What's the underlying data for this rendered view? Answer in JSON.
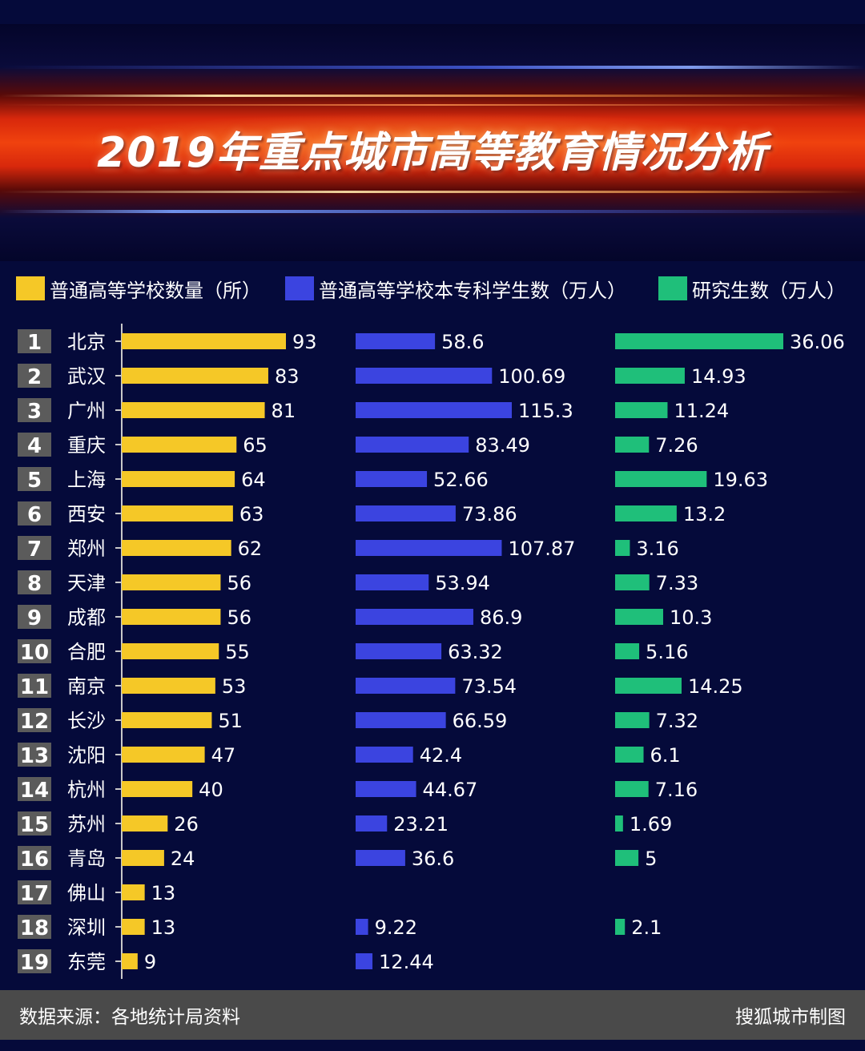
{
  "title": "2019年重点城市高等教育情况分析",
  "colors": {
    "schools": "#f5c827",
    "students": "#3b44e0",
    "grad": "#1fbf7a"
  },
  "legend": {
    "schools": "普通高等学校数量（所）",
    "students": "普通高等学校本专科学生数（万人）",
    "grad": "研究生数（万人）"
  },
  "footer": {
    "source": "数据来源：各地统计局资料",
    "credit": "搜狐城市制图"
  },
  "chart_data": {
    "type": "bar",
    "orientation": "horizontal",
    "categories": [
      "北京",
      "武汉",
      "广州",
      "重庆",
      "上海",
      "西安",
      "郑州",
      "天津",
      "成都",
      "合肥",
      "南京",
      "长沙",
      "沈阳",
      "杭州",
      "苏州",
      "青岛",
      "佛山",
      "深圳",
      "东莞"
    ],
    "ranks": [
      "1",
      "2",
      "3",
      "4",
      "5",
      "6",
      "7",
      "8",
      "9",
      "10",
      "11",
      "12",
      "13",
      "14",
      "15",
      "16",
      "17",
      "18",
      "19"
    ],
    "series": [
      {
        "name": "普通高等学校数量（所）",
        "values": [
          93,
          83,
          81,
          65,
          64,
          63,
          62,
          56,
          56,
          55,
          53,
          51,
          47,
          40,
          26,
          24,
          13,
          13,
          9
        ],
        "labels": [
          "93",
          "83",
          "81",
          "65",
          "64",
          "63",
          "62",
          "56",
          "56",
          "55",
          "53",
          "51",
          "47",
          "40",
          "26",
          "24",
          "13",
          "13",
          "9"
        ]
      },
      {
        "name": "普通高等学校本专科学生数（万人）",
        "values": [
          58.6,
          100.69,
          115.3,
          83.49,
          52.66,
          73.86,
          107.87,
          53.94,
          86.9,
          63.32,
          73.54,
          66.59,
          42.4,
          44.67,
          23.21,
          36.6,
          null,
          9.22,
          12.44
        ],
        "labels": [
          "58.6",
          "100.69",
          "115.3",
          "83.49",
          "52.66",
          "73.86",
          "107.87",
          "53.94",
          "86.9",
          "63.32",
          "73.54",
          "66.59",
          "42.4",
          "44.67",
          "23.21",
          "36.6",
          "",
          "9.22",
          "12.44"
        ]
      },
      {
        "name": "研究生数（万人）",
        "values": [
          36.06,
          14.93,
          11.24,
          7.26,
          19.63,
          13.2,
          3.16,
          7.33,
          10.3,
          5.16,
          14.25,
          7.32,
          6.1,
          7.16,
          1.69,
          5,
          null,
          2.1,
          null
        ],
        "labels": [
          "36.06",
          "14.93",
          "11.24",
          "7.26",
          "19.63",
          "13.2",
          "3.16",
          "7.33",
          "10.3",
          "5.16",
          "14.25",
          "7.32",
          "6.1",
          "7.16",
          "1.69",
          "5",
          "",
          "2.1",
          ""
        ]
      }
    ]
  }
}
